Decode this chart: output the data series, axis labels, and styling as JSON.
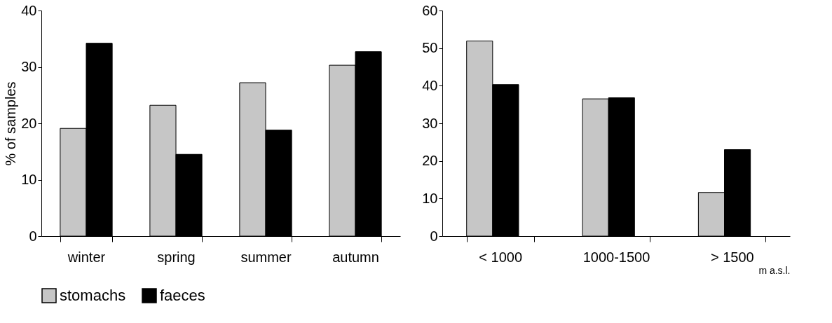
{
  "chart_data": [
    {
      "type": "bar",
      "ylabel": "% of samples",
      "categories": [
        "winter",
        "spring",
        "summer",
        "autumn"
      ],
      "series": [
        {
          "name": "stomachs",
          "color": "#c6c6c6",
          "values": [
            19.1,
            23.2,
            27.2,
            30.3
          ]
        },
        {
          "name": "faeces",
          "color": "#000000",
          "values": [
            34.2,
            14.5,
            18.8,
            32.7
          ]
        }
      ],
      "ylim": [
        0,
        40
      ],
      "yticks": [
        0,
        10,
        20,
        30,
        40
      ],
      "grid": false,
      "legend": "bottom"
    },
    {
      "type": "bar",
      "xlabel": "m a.s.l.",
      "categories": [
        "< 1000",
        "1000-1500",
        "> 1500"
      ],
      "series": [
        {
          "name": "stomachs",
          "color": "#c6c6c6",
          "values": [
            51.9,
            36.5,
            11.6
          ]
        },
        {
          "name": "faeces",
          "color": "#000000",
          "values": [
            40.3,
            36.8,
            23.0
          ]
        }
      ],
      "ylim": [
        0,
        60
      ],
      "yticks": [
        0,
        10,
        20,
        30,
        40,
        50,
        60
      ],
      "grid": false,
      "legend": "bottom"
    }
  ]
}
